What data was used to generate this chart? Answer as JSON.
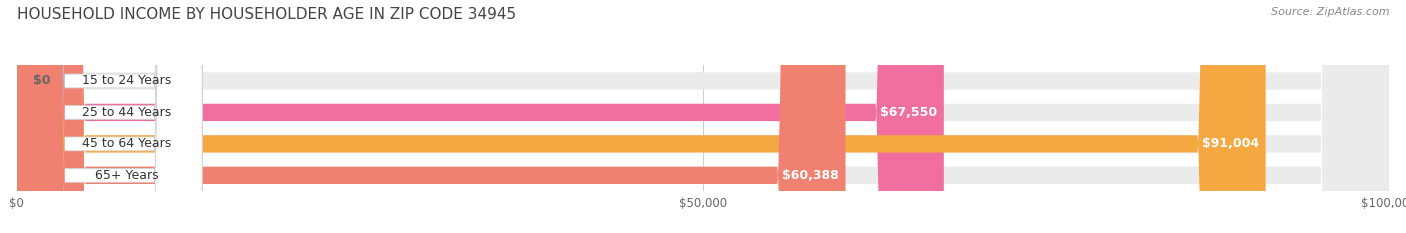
{
  "title": "HOUSEHOLD INCOME BY HOUSEHOLDER AGE IN ZIP CODE 34945",
  "source": "Source: ZipAtlas.com",
  "categories": [
    "15 to 24 Years",
    "25 to 44 Years",
    "45 to 64 Years",
    "65+ Years"
  ],
  "values": [
    0,
    67550,
    91004,
    60388
  ],
  "bar_colors": [
    "#b0aee0",
    "#f06fa0",
    "#f5a842",
    "#f08070"
  ],
  "bar_bg_color": "#ebebeb",
  "value_labels": [
    "$0",
    "$67,550",
    "$91,004",
    "$60,388"
  ],
  "xlim": [
    0,
    100000
  ],
  "xtick_values": [
    0,
    50000,
    100000
  ],
  "xtick_labels": [
    "$0",
    "$50,000",
    "$100,000"
  ],
  "background_color": "#ffffff",
  "title_fontsize": 11,
  "source_fontsize": 8,
  "label_fontsize": 9,
  "tick_fontsize": 8.5
}
